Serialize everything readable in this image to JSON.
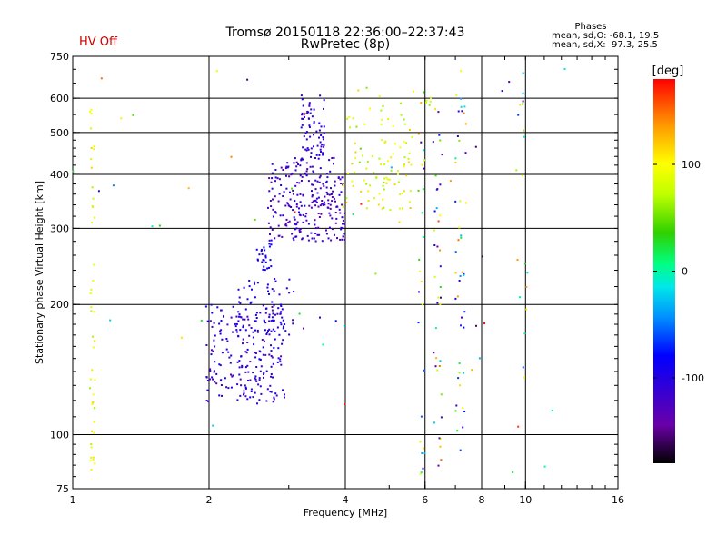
{
  "chart_data": {
    "type": "scatter",
    "title": "Tromsø 20150118 22:36:00–22:37:43",
    "subtitle": "RwPretec (8p)",
    "status_label": "HV Off",
    "phases_stats": {
      "heading": "Phases",
      "line_o": "mean, sd,O: -68.1, 19.5",
      "line_x": "mean, sd,X:  97.3, 25.5"
    },
    "xlabel": "Frequency [MHz]",
    "ylabel": "Stationary phase Virtual Height [km]",
    "x_scale": "log",
    "y_scale": "log",
    "xlim": [
      1,
      16
    ],
    "ylim": [
      75,
      750
    ],
    "x_ticks": [
      1,
      2,
      4,
      6,
      8,
      10,
      16
    ],
    "y_ticks": [
      75,
      100,
      200,
      300,
      400,
      500,
      600,
      750
    ],
    "x_gridlines": [
      2,
      4,
      6,
      8,
      10
    ],
    "y_gridlines": [
      100,
      200,
      300,
      400,
      500,
      600
    ],
    "grid": true,
    "colorbar": {
      "label": "[deg]",
      "ticks": [
        100,
        0,
        -100
      ],
      "range": [
        -180,
        180
      ]
    },
    "status_color": "#cc0000",
    "point_clusters": [
      {
        "name": "O-trace lower",
        "f": [
          1.97,
          2.95
        ],
        "h": [
          118,
          200
        ],
        "phase": [
          -135,
          -85
        ],
        "n": 230
      },
      {
        "name": "O-trace lower diffuse",
        "f": [
          2.3,
          3.1
        ],
        "h": [
          170,
          230
        ],
        "phase": [
          -115,
          -85
        ],
        "n": 60
      },
      {
        "name": "O-trace vertical spike",
        "f": [
          2.55,
          2.75
        ],
        "h": [
          240,
          280
        ],
        "phase": [
          -100,
          -85
        ],
        "n": 25
      },
      {
        "name": "O-trace F-region",
        "f": [
          2.7,
          4.0
        ],
        "h": [
          280,
          440
        ],
        "phase": [
          -140,
          -100
        ],
        "n": 260
      },
      {
        "name": "O-trace top spike",
        "f": [
          3.2,
          3.6
        ],
        "h": [
          420,
          610
        ],
        "phase": [
          -120,
          -95
        ],
        "n": 70
      },
      {
        "name": "X-trace",
        "f": [
          3.9,
          5.6
        ],
        "h": [
          330,
          480
        ],
        "phase": [
          60,
          125
        ],
        "n": 70
      },
      {
        "name": "upper scatter",
        "f": [
          4.0,
          6.2
        ],
        "h": [
          420,
          640
        ],
        "phase": [
          50,
          130
        ],
        "n": 35
      },
      {
        "name": "column f=1.1",
        "f": [
          1.09,
          1.12
        ],
        "h": [
          78,
          600
        ],
        "phase": [
          60,
          120
        ],
        "n": 45
      },
      {
        "name": "column f=5.9",
        "f": [
          5.8,
          6.0
        ],
        "h": [
          78,
          640
        ],
        "phase": [
          -160,
          160
        ],
        "n": 25
      },
      {
        "name": "column f=6.3",
        "f": [
          6.25,
          6.55
        ],
        "h": [
          78,
          580
        ],
        "phase": [
          -160,
          160
        ],
        "n": 40
      },
      {
        "name": "column f=7.2",
        "f": [
          7.0,
          7.4
        ],
        "h": [
          90,
          620
        ],
        "phase": [
          -150,
          150
        ],
        "n": 45
      },
      {
        "name": "column f=9.8",
        "f": [
          9.6,
          10.1
        ],
        "h": [
          100,
          640
        ],
        "phase": [
          -170,
          170
        ],
        "n": 15
      },
      {
        "name": "sparse noise",
        "f": [
          1.0,
          14.0
        ],
        "h": [
          78,
          720
        ],
        "phase": [
          -180,
          180
        ],
        "n": 55
      }
    ]
  }
}
